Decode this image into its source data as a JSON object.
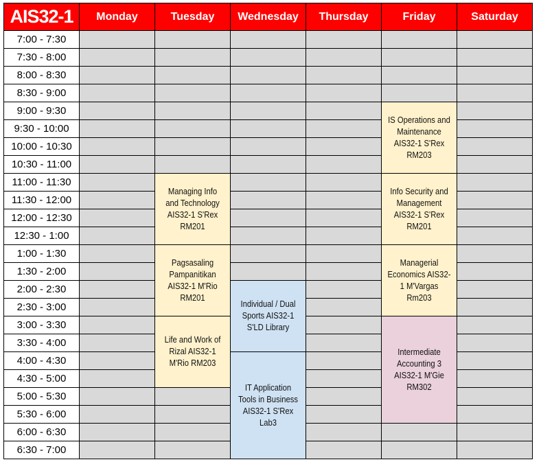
{
  "title": "AIS32-1",
  "days": [
    "Monday",
    "Tuesday",
    "Wednesday",
    "Thursday",
    "Friday",
    "Saturday"
  ],
  "times": [
    "7:00 - 7:30",
    "7:30 - 8:00",
    "8:00 - 8:30",
    "8:30 - 9:00",
    "9:00 - 9:30",
    "9:30 - 10:00",
    "10:00 - 10:30",
    "10:30 - 11:00",
    "11:00 - 11:30",
    "11:30 - 12:00",
    "12:00 - 12:30",
    "12:30 - 1:00",
    "1:00 - 1:30",
    "1:30 - 2:00",
    "2:00 - 2:30",
    "2:30 - 3:00",
    "3:00 - 3:30",
    "3:30 - 4:00",
    "4:00 - 4:30",
    "4:30 - 5:00",
    "5:00 - 5:30",
    "5:30 - 6:00",
    "6:00 - 6:30",
    "6:30 - 7:00"
  ],
  "colors": {
    "header": "#ff0000",
    "empty": "#d9d9d9",
    "yellow": "#fff2cc",
    "blue": "#cfe2f3",
    "pink": "#ead1dc"
  },
  "events": [
    {
      "day": 1,
      "start": "11:00 - 11:30",
      "slots": 4,
      "color": "yellow",
      "text": "Managing Info and Technology AIS32-1 S'Rex RM201"
    },
    {
      "day": 1,
      "start": "1:00 - 1:30",
      "slots": 4,
      "color": "yellow",
      "text": "Pagsasaling Pampanitikan AIS32-1 M'Rio RM201"
    },
    {
      "day": 1,
      "start": "3:00 - 3:30",
      "slots": 4,
      "color": "yellow",
      "text": "Life and Work of Rizal AIS32-1 M'Rio RM203"
    },
    {
      "day": 2,
      "start": "2:00 - 2:30",
      "slots": 4,
      "color": "blue",
      "text": "Individual / Dual Sports AIS32-1 S'LD Library"
    },
    {
      "day": 2,
      "start": "4:00 - 4:30",
      "slots": 6,
      "color": "blue",
      "text": "IT Application Tools in Business AIS32-1 S'Rex Lab3"
    },
    {
      "day": 4,
      "start": "9:00 - 9:30",
      "slots": 4,
      "color": "yellow",
      "text": "IS Operations and Maintenance AIS32-1 S'Rex RM203"
    },
    {
      "day": 4,
      "start": "11:00 - 11:30",
      "slots": 4,
      "color": "yellow",
      "text": "Info Security and Management AIS32-1 S'Rex RM201"
    },
    {
      "day": 4,
      "start": "1:00 - 1:30",
      "slots": 4,
      "color": "yellow",
      "text": "Managerial Economics AIS32-1 M'Vargas Rm203"
    },
    {
      "day": 4,
      "start": "3:00 - 3:30",
      "slots": 6,
      "color": "pink",
      "text": "Intermediate Accounting 3 AIS32-1 M'Gie RM302"
    }
  ]
}
